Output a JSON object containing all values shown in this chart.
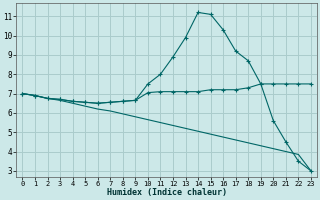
{
  "xlabel": "Humidex (Indice chaleur)",
  "background_color": "#cce8e8",
  "grid_color": "#aacccc",
  "line_color": "#006666",
  "xlim": [
    -0.5,
    23.5
  ],
  "ylim": [
    2.7,
    11.7
  ],
  "yticks": [
    3,
    4,
    5,
    6,
    7,
    8,
    9,
    10,
    11
  ],
  "xticks": [
    0,
    1,
    2,
    3,
    4,
    5,
    6,
    7,
    8,
    9,
    10,
    11,
    12,
    13,
    14,
    15,
    16,
    17,
    18,
    19,
    20,
    21,
    22,
    23
  ],
  "line1_x": [
    0,
    1,
    2,
    3,
    4,
    5,
    6,
    7,
    8,
    9,
    10,
    11,
    12,
    13,
    14,
    15,
    16,
    17,
    18,
    19,
    20,
    21,
    22,
    23
  ],
  "line1_y": [
    7.0,
    6.9,
    6.75,
    6.7,
    6.6,
    6.55,
    6.5,
    6.55,
    6.6,
    6.65,
    7.5,
    8.0,
    8.9,
    9.9,
    11.2,
    11.1,
    10.3,
    9.2,
    8.7,
    7.5,
    5.6,
    4.5,
    3.5,
    3.0
  ],
  "line2_x": [
    0,
    1,
    2,
    3,
    4,
    5,
    6,
    7,
    8,
    9,
    10,
    11,
    12,
    13,
    14,
    15,
    16,
    17,
    18,
    19,
    20,
    21,
    22,
    23
  ],
  "line2_y": [
    7.0,
    6.9,
    6.75,
    6.7,
    6.6,
    6.55,
    6.5,
    6.55,
    6.6,
    6.65,
    7.05,
    7.1,
    7.1,
    7.1,
    7.1,
    7.2,
    7.2,
    7.2,
    7.3,
    7.5,
    7.5,
    7.5,
    7.5,
    7.5
  ],
  "line3_x": [
    0,
    1,
    2,
    3,
    4,
    5,
    6,
    7,
    8,
    9,
    10,
    11,
    12,
    13,
    14,
    15,
    16,
    17,
    18,
    19,
    20,
    21,
    22,
    23
  ],
  "line3_y": [
    7.0,
    6.9,
    6.75,
    6.65,
    6.5,
    6.35,
    6.2,
    6.1,
    5.95,
    5.8,
    5.65,
    5.5,
    5.35,
    5.2,
    5.05,
    4.9,
    4.75,
    4.6,
    4.45,
    4.3,
    4.15,
    4.0,
    3.85,
    3.0
  ]
}
